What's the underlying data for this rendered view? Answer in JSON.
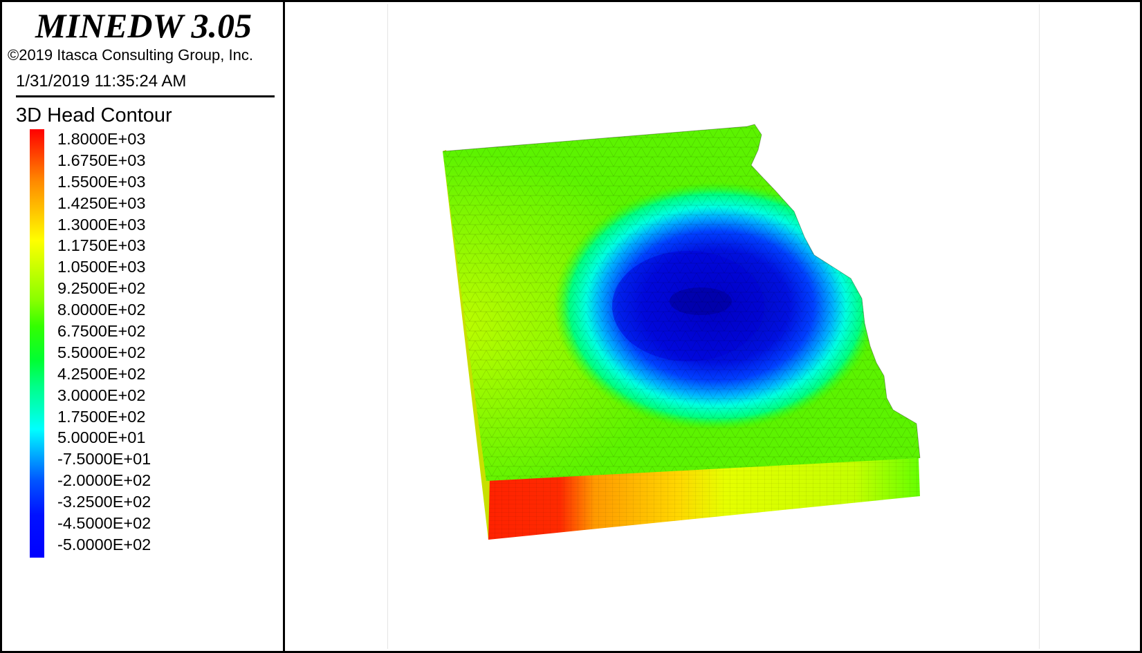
{
  "app": {
    "title": "MINEDW 3.05",
    "copyright": "©2019 Itasca Consulting Group, Inc.",
    "timestamp": "1/31/2019 11:35:24 AM"
  },
  "legend": {
    "title": "3D Head Contour",
    "values": [
      "1.8000E+03",
      "1.6750E+03",
      "1.5500E+03",
      "1.4250E+03",
      "1.3000E+03",
      "1.1750E+03",
      "1.0500E+03",
      "9.2500E+02",
      "8.0000E+02",
      "6.7500E+02",
      "5.5000E+02",
      "4.2500E+02",
      "3.0000E+02",
      "1.7500E+02",
      "5.0000E+01",
      "-7.5000E+01",
      "-2.0000E+02",
      "-3.2500E+02",
      "-4.5000E+02",
      "-5.0000E+02"
    ]
  },
  "colors": {
    "max": "#ff0000",
    "mid": "#33ff00",
    "min": "#0000ff"
  }
}
